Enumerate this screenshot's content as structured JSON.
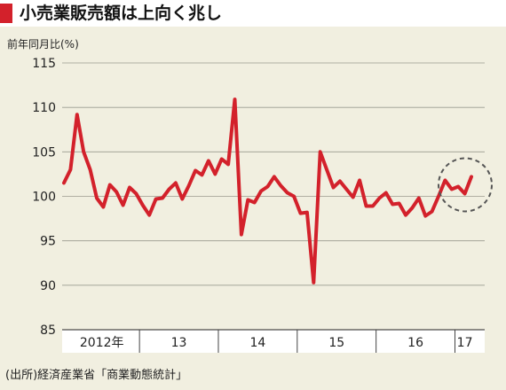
{
  "header": {
    "title": "小売業販売額は上向く兆し"
  },
  "source_note": "(出所)経済産業省「商業動態統計」",
  "colors": {
    "accent": "#d3212b",
    "background": "#f1efe0",
    "axis_band": "#ffffff",
    "highlight_circle": "#555555"
  },
  "chart_data": {
    "type": "line",
    "title": "小売業販売額は上向く兆し",
    "ylabel": "前年同月比(%)",
    "ylim": [
      85,
      115
    ],
    "yticks": [
      85,
      90,
      95,
      100,
      105,
      110,
      115
    ],
    "grid": true,
    "year_labels": [
      "2012年",
      "13",
      "14",
      "15",
      "16",
      "17"
    ],
    "series": [
      {
        "color": "#d3212b",
        "x_start": "2012-01",
        "values": [
          101.5,
          103.0,
          109.2,
          105.0,
          103.0,
          99.8,
          98.8,
          101.3,
          100.5,
          99.0,
          101.0,
          100.3,
          99.0,
          97.9,
          99.7,
          99.8,
          100.8,
          101.5,
          99.7,
          101.2,
          102.9,
          102.4,
          104.0,
          102.5,
          104.2,
          103.6,
          110.9,
          95.7,
          99.6,
          99.3,
          100.6,
          101.1,
          102.2,
          101.2,
          100.4,
          100.0,
          98.1,
          98.2,
          90.3,
          105.0,
          103.0,
          101.0,
          101.7,
          100.8,
          99.9,
          101.8,
          98.9,
          98.9,
          99.8,
          100.4,
          99.1,
          99.2,
          97.9,
          98.7,
          99.8,
          97.8,
          98.3,
          100.0,
          101.8,
          100.8,
          101.1,
          100.3,
          102.2
        ]
      }
    ],
    "annotations": [
      {
        "type": "dashed-circle",
        "around": "latest months (2017)"
      }
    ]
  }
}
